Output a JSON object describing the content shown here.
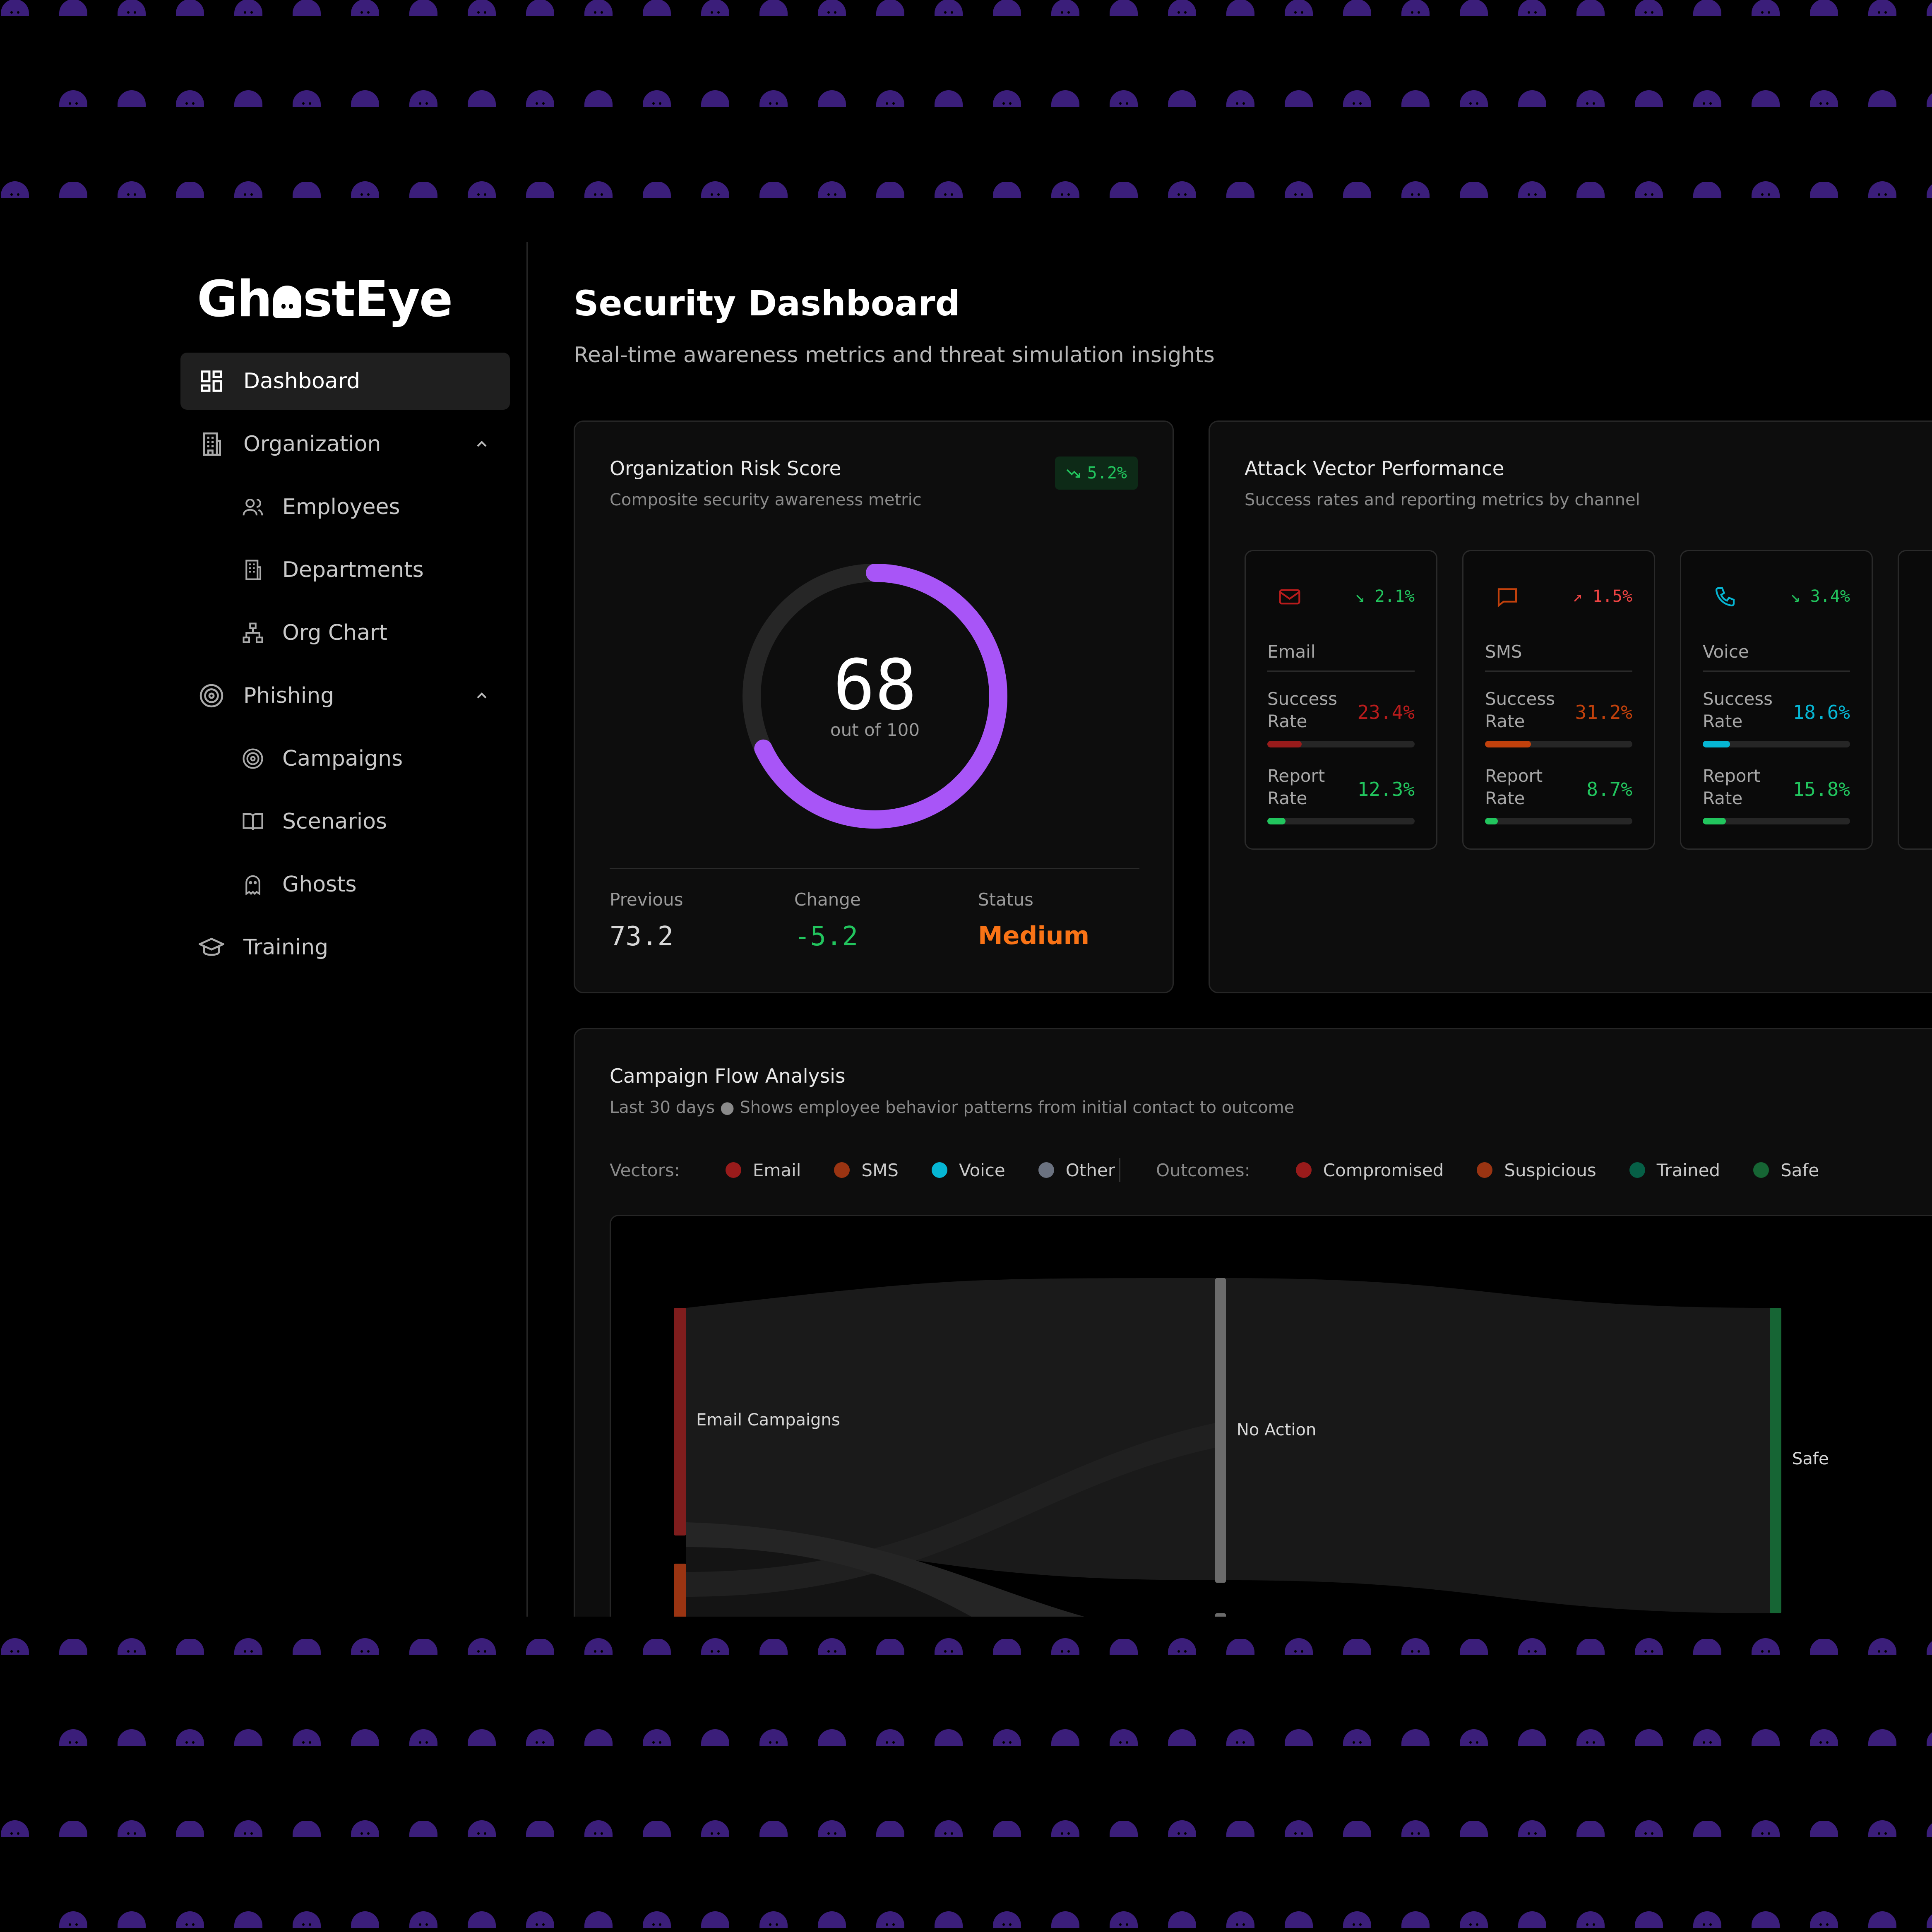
{
  "app": {
    "logo_pre": "Gh",
    "logo_post": "stEye"
  },
  "sidebar": {
    "items": [
      {
        "label": "Dashboard",
        "icon": "dashboard-icon",
        "active": true
      },
      {
        "label": "Organization",
        "icon": "building-icon",
        "expanded": true
      },
      {
        "label": "Employees",
        "icon": "users-icon"
      },
      {
        "label": "Departments",
        "icon": "building-icon"
      },
      {
        "label": "Org Chart",
        "icon": "org-chart-icon"
      },
      {
        "label": "Phishing",
        "icon": "target-icon",
        "expanded": true
      },
      {
        "label": "Campaigns",
        "icon": "target-icon"
      },
      {
        "label": "Scenarios",
        "icon": "book-icon"
      },
      {
        "label": "Ghosts",
        "icon": "ghost-icon"
      },
      {
        "label": "Training",
        "icon": "graduation-cap-icon"
      }
    ]
  },
  "header": {
    "title": "Security Dashboard",
    "subtitle": "Real-time awareness metrics and threat simulation insights"
  },
  "risk": {
    "title": "Organization Risk Score",
    "subtitle": "Composite security awareness metric",
    "trend": "5.2%",
    "score": "68",
    "score_value": 68,
    "score_max": 100,
    "out_of": "out of 100",
    "previous_label": "Previous",
    "previous": "73.2",
    "change_label": "Change",
    "change": "-5.2",
    "status_label": "Status",
    "status": "Medium",
    "colors": {
      "gauge": "#a855f7",
      "status": "#f97316",
      "positive": "#22c55e"
    }
  },
  "attack_vectors": {
    "title": "Attack Vector Performance",
    "subtitle": "Success rates and reporting metrics by channel",
    "success_label": "Success Rate",
    "report_label": "Report Rate",
    "vectors": [
      {
        "name": "Email",
        "icon": "mail-icon",
        "trend": "2.1%",
        "trend_dir": "down",
        "success": "23.4%",
        "success_value": 23.4,
        "report": "12.3%",
        "report_value": 12.3,
        "color": "#b91c1c"
      },
      {
        "name": "SMS",
        "icon": "message-icon",
        "trend": "1.5%",
        "trend_dir": "up",
        "success": "31.2%",
        "success_value": 31.2,
        "report": "8.7%",
        "report_value": 8.7,
        "color": "#c2410c"
      },
      {
        "name": "Voice",
        "icon": "phone-icon",
        "trend": "3.4%",
        "trend_dir": "down",
        "success": "18.6%",
        "success_value": 18.6,
        "report": "15.8%",
        "report_value": 15.8,
        "color": "#06b6d4"
      }
    ]
  },
  "flow": {
    "title": "Campaign Flow Analysis",
    "subtitle": "Last 30 days ● Shows employee behavior patterns from initial contact to outcome",
    "vectors_label": "Vectors:",
    "outcomes_label": "Outcomes:",
    "vector_legend": [
      {
        "label": "Email",
        "color": "#991b1b"
      },
      {
        "label": "SMS",
        "color": "#9a3412"
      },
      {
        "label": "Voice",
        "color": "#06b6d4"
      },
      {
        "label": "Other",
        "color": "#6b7280"
      }
    ],
    "outcome_legend": [
      {
        "label": "Compromised",
        "color": "#991b1b"
      },
      {
        "label": "Suspicious",
        "color": "#9a3412"
      },
      {
        "label": "Trained",
        "color": "#065f46"
      },
      {
        "label": "Safe",
        "color": "#166534"
      }
    ],
    "nodes": {
      "source": "Email Campaigns",
      "middle": "No Action",
      "target": "Safe"
    }
  }
}
